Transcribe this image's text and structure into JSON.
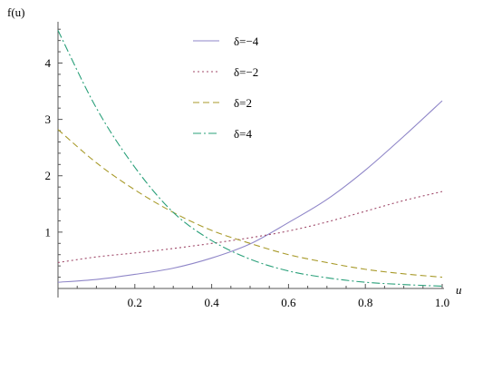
{
  "chart_data": {
    "type": "line",
    "title": "",
    "xlabel": "u",
    "ylabel": "f(u)",
    "xlim": [
      0,
      1.0
    ],
    "ylim": [
      0,
      4.7
    ],
    "x_ticks": [
      "0.2",
      "0.4",
      "0.6",
      "0.8",
      "1.0"
    ],
    "y_ticks": [
      "1",
      "2",
      "3",
      "4"
    ],
    "grid": false,
    "legend_position": "top-center",
    "x": [
      0.0,
      0.1,
      0.2,
      0.3,
      0.4,
      0.5,
      0.6,
      0.7,
      0.8,
      0.9,
      1.0
    ],
    "series": [
      {
        "name": "δ=−4",
        "color": "#8f86c8",
        "dash": "solid",
        "values": [
          0.11,
          0.16,
          0.25,
          0.36,
          0.54,
          0.79,
          1.17,
          1.58,
          2.1,
          2.7,
          3.33
        ]
      },
      {
        "name": "δ=−2",
        "color": "#a04a6a",
        "dash": "dotted",
        "values": [
          0.46,
          0.56,
          0.63,
          0.71,
          0.8,
          0.9,
          1.02,
          1.18,
          1.37,
          1.56,
          1.72
        ]
      },
      {
        "name": "δ=2",
        "color": "#a89a2a",
        "dash": "dashed",
        "values": [
          2.82,
          2.23,
          1.75,
          1.35,
          1.03,
          0.8,
          0.6,
          0.46,
          0.34,
          0.26,
          0.2
        ]
      },
      {
        "name": "δ=4",
        "color": "#2aa07a",
        "dash": "dashdot",
        "values": [
          4.58,
          3.2,
          2.15,
          1.35,
          0.85,
          0.52,
          0.31,
          0.19,
          0.11,
          0.07,
          0.04
        ]
      }
    ]
  }
}
